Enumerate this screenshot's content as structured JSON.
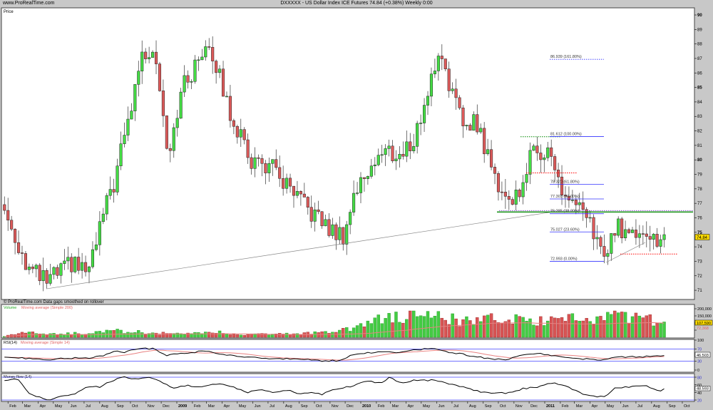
{
  "header": {
    "site": "www.ProRealTime.com",
    "title": "DXXXXX - US Dollar Index ICE Futures    74.84 (+0.38%)    Weekly  0:00"
  },
  "colors": {
    "up": "#44dd44",
    "down": "#dd5a5a",
    "fib": "#3333ff",
    "support": "#008800",
    "panel_bg": "#ffffff",
    "chrome": "#c8c8c8",
    "ma": "#e88080"
  },
  "price_panel": {
    "label": "Price",
    "footer": "© ProRealTime.com  Data gaps smoothed on rollover",
    "last_price_label": "74.84"
  },
  "volume_panel": {
    "label_main": "Volume",
    "label_ma": "Moving average (Simple 200)",
    "last_value": "107,590",
    "ma_value": "72,368"
  },
  "rsi_panel": {
    "label_main": "RSI(14)",
    "label_ma": "Moving average (Simple 14)",
    "last_value": "46.503"
  },
  "mf_panel": {
    "label_main": "Money flow (14)",
    "last_value": "48.593"
  },
  "chart_data": [
    {
      "type": "candlestick",
      "title": "DXXXXX - US Dollar Index ICE Futures",
      "timeframe": "Weekly",
      "ylabel": "Price",
      "ylim": [
        70.5,
        90.5
      ],
      "y_ticks": [
        "71",
        "72",
        "73",
        "74",
        "75",
        "76",
        "77",
        "78",
        "79",
        "80",
        "81",
        "82",
        "83",
        "84",
        "85",
        "86",
        "87",
        "88",
        "89",
        "90"
      ],
      "x_ticks": [
        "Feb",
        "Mar",
        "Apr",
        "May",
        "Jun",
        "Jul",
        "Aug",
        "Sep",
        "Oct",
        "Nov",
        "Dec",
        "2009",
        "Feb",
        "Mar",
        "Apr",
        "May",
        "Jun",
        "Jul",
        "Aug",
        "Sep",
        "Oct",
        "Nov",
        "Dec",
        "2010",
        "Feb",
        "Mar",
        "Apr",
        "May",
        "Jun",
        "Jul",
        "Aug",
        "Sep",
        "Oct",
        "Nov",
        "Dec",
        "2011",
        "Feb",
        "Mar",
        "Apr",
        "May",
        "Jun",
        "Jul",
        "Aug",
        "Sep",
        "Oct"
      ],
      "x_range": [
        "2008-01-20",
        "2011-10-20"
      ],
      "close_path": [
        [
          "2008-01-25",
          76.5
        ],
        [
          "2008-03-12",
          72.5
        ],
        [
          "2008-04-17",
          71.6
        ],
        [
          "2008-06-05",
          72.8
        ],
        [
          "2008-07-12",
          72.3
        ],
        [
          "2008-08-02",
          75.5
        ],
        [
          "2008-08-30",
          78.5
        ],
        [
          "2008-10-05",
          84
        ],
        [
          "2008-10-19",
          86.8
        ],
        [
          "2008-11-17",
          88
        ],
        [
          "2008-12-15",
          80.5
        ],
        [
          "2009-01-12",
          85
        ],
        [
          "2009-02-09",
          86.5
        ],
        [
          "2009-03-03",
          88.5
        ],
        [
          "2009-04-14",
          83.5
        ],
        [
          "2009-05-27",
          80
        ],
        [
          "2009-07-08",
          79.5
        ],
        [
          "2009-08-20",
          77.5
        ],
        [
          "2009-10-01",
          76.2
        ],
        [
          "2009-11-06",
          75
        ],
        [
          "2009-11-27",
          74.8
        ],
        [
          "2009-12-18",
          77.5
        ],
        [
          "2010-01-23",
          79.8
        ],
        [
          "2010-02-20",
          80.6
        ],
        [
          "2010-03-21",
          80.2
        ],
        [
          "2010-04-18",
          81.5
        ],
        [
          "2010-05-17",
          85
        ],
        [
          "2010-06-07",
          87.8
        ],
        [
          "2010-06-28",
          85
        ],
        [
          "2010-07-20",
          82.5
        ],
        [
          "2010-08-17",
          82.8
        ],
        [
          "2010-09-21",
          79
        ],
        [
          "2010-10-20",
          77.2
        ],
        [
          "2010-11-06",
          77.5
        ],
        [
          "2010-12-08",
          80.5
        ],
        [
          "2011-01-08",
          80.8
        ],
        [
          "2011-02-03",
          77.8
        ],
        [
          "2011-03-03",
          76.8
        ],
        [
          "2011-03-31",
          75.5
        ],
        [
          "2011-05-03",
          73.2
        ],
        [
          "2011-05-23",
          75.5
        ],
        [
          "2011-06-24",
          74.8
        ],
        [
          "2011-07-15",
          75.5
        ],
        [
          "2011-08-12",
          74.2
        ],
        [
          "2011-08-26",
          74.84
        ]
      ],
      "fibonacci": [
        {
          "price": 72.993,
          "label": "72.993 (0.00%)"
        },
        {
          "price": 75.027,
          "label": "75.027 (23.60%)"
        },
        {
          "price": 76.285,
          "label": "76.285 (38.20%)"
        },
        {
          "price": 77.303,
          "label": "77.303 (50.00%)"
        },
        {
          "price": 78.32,
          "label": "78.320 (61.80%)"
        },
        {
          "price": 81.612,
          "label": "81.612 (100.00%)"
        },
        {
          "price": 86.939,
          "label": "86.939 (161.80%)"
        }
      ],
      "support_line": 76.4,
      "resistance_dotted": [
        {
          "price": 81.6,
          "color": "#008800"
        },
        {
          "price": 79.1,
          "color": "#ff0000"
        },
        {
          "price": 73.5,
          "color": "#ff0000"
        },
        {
          "price": 76.5,
          "color": "#8844cc"
        }
      ],
      "trendline": [
        [
          "2008-04-17",
          71.1
        ],
        [
          "2011-01-15",
          76.4
        ]
      ]
    },
    {
      "type": "bar",
      "name": "Volume",
      "y_ticks": [
        "50,000",
        "100,000",
        "150,000",
        "200,000"
      ],
      "ylim": [
        0,
        210000
      ],
      "volume_path": [
        [
          "2008-01-25",
          8000
        ],
        [
          "2008-03-10",
          40000
        ],
        [
          "2008-04-01",
          20000
        ],
        [
          "2008-06-01",
          25000
        ],
        [
          "2008-09-01",
          45000
        ],
        [
          "2008-10-15",
          30000
        ],
        [
          "2008-12-01",
          20000
        ],
        [
          "2009-03-01",
          30000
        ],
        [
          "2009-06-01",
          20000
        ],
        [
          "2009-09-01",
          25000
        ],
        [
          "2009-10-20",
          35000
        ],
        [
          "2009-12-01",
          50000
        ],
        [
          "2010-01-15",
          110000
        ],
        [
          "2010-03-01",
          140000
        ],
        [
          "2010-05-10",
          170000
        ],
        [
          "2010-06-15",
          130000
        ],
        [
          "2010-08-01",
          110000
        ],
        [
          "2010-10-01",
          130000
        ],
        [
          "2010-12-01",
          110000
        ],
        [
          "2011-02-01",
          120000
        ],
        [
          "2011-04-15",
          130000
        ],
        [
          "2011-05-10",
          190000
        ],
        [
          "2011-06-15",
          150000
        ],
        [
          "2011-08-26",
          107590
        ]
      ]
    },
    {
      "type": "line",
      "name": "RSI(14)",
      "ylim": [
        0,
        100
      ],
      "y_ticks": [
        "0",
        "30",
        "70",
        "100"
      ],
      "levels": [
        30,
        70
      ],
      "rsi_path": [
        [
          "2008-01-25",
          45
        ],
        [
          "2008-03-15",
          38
        ],
        [
          "2008-04-20",
          35
        ],
        [
          "2008-06-01",
          40
        ],
        [
          "2008-07-15",
          40
        ],
        [
          "2008-08-10",
          50
        ],
        [
          "2008-09-01",
          65
        ],
        [
          "2008-09-20",
          60
        ],
        [
          "2008-10-15",
          72
        ],
        [
          "2008-11-15",
          72
        ],
        [
          "2008-12-10",
          50
        ],
        [
          "2009-01-10",
          55
        ],
        [
          "2009-02-15",
          62
        ],
        [
          "2009-03-10",
          62
        ],
        [
          "2009-04-01",
          52
        ],
        [
          "2009-05-15",
          45
        ],
        [
          "2009-06-15",
          40
        ],
        [
          "2009-08-01",
          38
        ],
        [
          "2009-09-15",
          35
        ],
        [
          "2009-10-20",
          30
        ],
        [
          "2009-11-20",
          32
        ],
        [
          "2009-12-20",
          55
        ],
        [
          "2010-02-10",
          60
        ],
        [
          "2010-03-20",
          58
        ],
        [
          "2010-05-01",
          70
        ],
        [
          "2010-05-25",
          72
        ],
        [
          "2010-06-20",
          62
        ],
        [
          "2010-08-01",
          50
        ],
        [
          "2010-09-10",
          38
        ],
        [
          "2010-10-15",
          35
        ],
        [
          "2010-11-20",
          52
        ],
        [
          "2010-12-20",
          55
        ],
        [
          "2011-01-15",
          48
        ],
        [
          "2011-03-01",
          40
        ],
        [
          "2011-04-20",
          33
        ],
        [
          "2011-05-20",
          42
        ],
        [
          "2011-06-20",
          45
        ],
        [
          "2011-07-20",
          45
        ],
        [
          "2011-08-26",
          46.5
        ]
      ]
    },
    {
      "type": "line",
      "name": "Money flow (14)",
      "ylim": [
        10,
        85
      ],
      "y_ticks": [
        "20",
        "40",
        "60",
        "80"
      ],
      "levels": [
        20,
        80
      ],
      "mf_path": [
        [
          "2008-01-25",
          70
        ],
        [
          "2008-02-20",
          75
        ],
        [
          "2008-03-15",
          35
        ],
        [
          "2008-04-20",
          20
        ],
        [
          "2008-05-20",
          30
        ],
        [
          "2008-06-10",
          35
        ],
        [
          "2008-07-05",
          55
        ],
        [
          "2008-08-01",
          55
        ],
        [
          "2008-08-25",
          70
        ],
        [
          "2008-09-15",
          82
        ],
        [
          "2008-10-10",
          75
        ],
        [
          "2008-11-10",
          80
        ],
        [
          "2008-12-10",
          62
        ],
        [
          "2008-12-25",
          50
        ],
        [
          "2009-01-20",
          58
        ],
        [
          "2009-02-15",
          55
        ],
        [
          "2009-03-10",
          62
        ],
        [
          "2009-04-01",
          62
        ],
        [
          "2009-04-20",
          55
        ],
        [
          "2009-05-20",
          40
        ],
        [
          "2009-06-10",
          48
        ],
        [
          "2009-07-10",
          40
        ],
        [
          "2009-08-10",
          45
        ],
        [
          "2009-09-05",
          35
        ],
        [
          "2009-09-25",
          40
        ],
        [
          "2009-10-15",
          35
        ],
        [
          "2009-11-10",
          48
        ],
        [
          "2009-12-10",
          55
        ],
        [
          "2010-01-15",
          70
        ],
        [
          "2010-02-10",
          65
        ],
        [
          "2010-02-28",
          80
        ],
        [
          "2010-03-20",
          65
        ],
        [
          "2010-04-20",
          72
        ],
        [
          "2010-05-20",
          72
        ],
        [
          "2010-06-10",
          68
        ],
        [
          "2010-07-05",
          60
        ],
        [
          "2010-08-15",
          45
        ],
        [
          "2010-09-10",
          38
        ],
        [
          "2010-10-20",
          38
        ],
        [
          "2010-11-20",
          50
        ],
        [
          "2010-12-20",
          55
        ],
        [
          "2011-01-15",
          65
        ],
        [
          "2011-02-15",
          55
        ],
        [
          "2011-03-10",
          40
        ],
        [
          "2011-04-10",
          28
        ],
        [
          "2011-04-30",
          30
        ],
        [
          "2011-05-20",
          50
        ],
        [
          "2011-06-20",
          55
        ],
        [
          "2011-07-20",
          58
        ],
        [
          "2011-08-15",
          42
        ],
        [
          "2011-08-26",
          48.6
        ]
      ]
    }
  ]
}
